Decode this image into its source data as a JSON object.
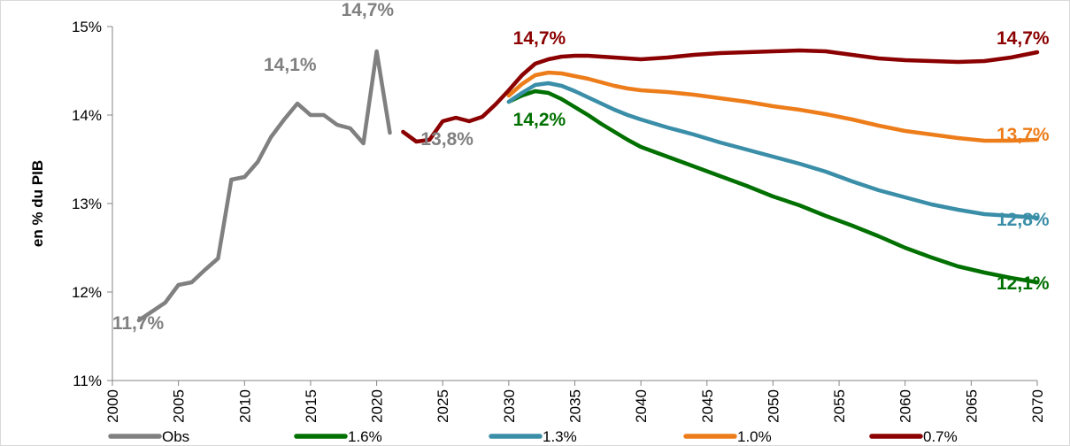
{
  "chart_data": {
    "type": "line",
    "ylabel": "en % du PIB",
    "xlabel": "",
    "xlim": [
      2000,
      2070
    ],
    "ylim": [
      11,
      15
    ],
    "x_ticks": [
      "2000",
      "2005",
      "2010",
      "2015",
      "2020",
      "2025",
      "2030",
      "2035",
      "2040",
      "2045",
      "2050",
      "2055",
      "2060",
      "2065",
      "2070"
    ],
    "y_ticks": [
      "11%",
      "12%",
      "13%",
      "14%",
      "15%"
    ],
    "legend_position": "bottom",
    "series": [
      {
        "name": "Obs",
        "color": "#808080",
        "x": [
          2002,
          2003,
          2004,
          2005,
          2006,
          2007,
          2008,
          2009,
          2010,
          2011,
          2012,
          2013,
          2014,
          2015,
          2016,
          2017,
          2018,
          2019,
          2020,
          2021
        ],
        "y": [
          11.68,
          11.78,
          11.88,
          12.08,
          12.11,
          12.25,
          12.38,
          13.27,
          13.3,
          13.47,
          13.75,
          13.95,
          14.13,
          14.0,
          14.0,
          13.89,
          13.85,
          13.68,
          14.72,
          13.8
        ]
      },
      {
        "name": "1.6%",
        "color": "#007000",
        "x": [
          2030,
          2031,
          2032,
          2033,
          2034,
          2035,
          2036,
          2037,
          2038,
          2039,
          2040,
          2042,
          2044,
          2046,
          2048,
          2050,
          2052,
          2054,
          2056,
          2058,
          2060,
          2062,
          2064,
          2066,
          2068,
          2070
        ],
        "y": [
          14.15,
          14.22,
          14.27,
          14.25,
          14.18,
          14.09,
          14.0,
          13.9,
          13.81,
          13.72,
          13.64,
          13.53,
          13.42,
          13.31,
          13.2,
          13.08,
          12.98,
          12.86,
          12.75,
          12.63,
          12.5,
          12.39,
          12.29,
          12.22,
          12.16,
          12.11
        ]
      },
      {
        "name": "1.3%",
        "color": "#3a8ea8",
        "x": [
          2030,
          2031,
          2032,
          2033,
          2034,
          2035,
          2036,
          2037,
          2038,
          2039,
          2040,
          2042,
          2044,
          2046,
          2048,
          2050,
          2052,
          2054,
          2056,
          2058,
          2060,
          2062,
          2064,
          2066,
          2068,
          2070
        ],
        "y": [
          14.15,
          14.25,
          14.34,
          14.36,
          14.33,
          14.27,
          14.2,
          14.13,
          14.06,
          14.0,
          13.95,
          13.86,
          13.78,
          13.69,
          13.61,
          13.53,
          13.45,
          13.36,
          13.25,
          13.15,
          13.07,
          12.99,
          12.93,
          12.88,
          12.86,
          12.84
        ]
      },
      {
        "name": "1.0%",
        "color": "#ed7d1a",
        "x": [
          2030,
          2031,
          2032,
          2033,
          2034,
          2035,
          2036,
          2037,
          2038,
          2039,
          2040,
          2042,
          2044,
          2046,
          2048,
          2050,
          2052,
          2054,
          2056,
          2058,
          2060,
          2062,
          2064,
          2066,
          2068,
          2070
        ],
        "y": [
          14.22,
          14.35,
          14.45,
          14.48,
          14.47,
          14.44,
          14.41,
          14.37,
          14.33,
          14.3,
          14.28,
          14.26,
          14.23,
          14.19,
          14.15,
          14.1,
          14.06,
          14.01,
          13.95,
          13.88,
          13.82,
          13.78,
          13.74,
          13.71,
          13.71,
          13.72
        ]
      },
      {
        "name": "0.7%",
        "color": "#8b0000",
        "x": [
          2022,
          2023,
          2024,
          2025,
          2026,
          2027,
          2028,
          2029,
          2030,
          2031,
          2032,
          2033,
          2034,
          2035,
          2036,
          2038,
          2040,
          2042,
          2044,
          2046,
          2048,
          2050,
          2052,
          2054,
          2056,
          2058,
          2060,
          2062,
          2064,
          2066,
          2068,
          2070
        ],
        "y": [
          13.81,
          13.7,
          13.72,
          13.93,
          13.97,
          13.93,
          13.98,
          14.12,
          14.28,
          14.45,
          14.58,
          14.63,
          14.66,
          14.67,
          14.67,
          14.65,
          14.63,
          14.65,
          14.68,
          14.7,
          14.71,
          14.72,
          14.73,
          14.72,
          14.68,
          14.64,
          14.62,
          14.61,
          14.6,
          14.61,
          14.65,
          14.71
        ]
      }
    ],
    "annotations": [
      {
        "text": "11,7%",
        "color": "#808080",
        "x": 2002,
        "y": 11.7
      },
      {
        "text": "14,1%",
        "color": "#808080",
        "x": 2014,
        "y": 14.1
      },
      {
        "text": "14,7%",
        "color": "#808080",
        "x": 2020,
        "y": 14.7
      },
      {
        "text": "13,8%",
        "color": "#808080",
        "x": 2022,
        "y": 13.8
      },
      {
        "text": "14,7%",
        "color": "#8b0000",
        "x": 2033,
        "y": 14.7
      },
      {
        "text": "14,2%",
        "color": "#007000",
        "x": 2033,
        "y": 14.2
      },
      {
        "text": "14,7%",
        "color": "#8b0000",
        "x": 2070,
        "y": 14.7
      },
      {
        "text": "13,7%",
        "color": "#ed7d1a",
        "x": 2070,
        "y": 13.7
      },
      {
        "text": "12,8%",
        "color": "#3a8ea8",
        "x": 2070,
        "y": 12.8
      },
      {
        "text": "12,1%",
        "color": "#007000",
        "x": 2070,
        "y": 12.1
      }
    ]
  }
}
